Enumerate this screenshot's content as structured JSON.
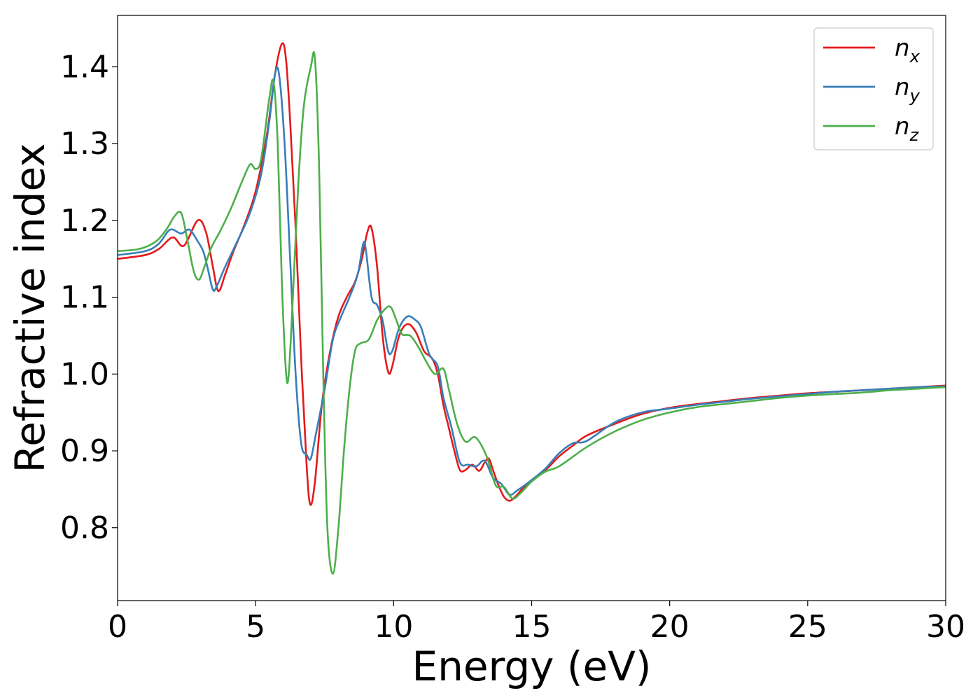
{
  "chart_data": {
    "type": "line",
    "title": "",
    "xlabel": "Energy (eV)",
    "ylabel": "Refractive index",
    "xlim": [
      0,
      30
    ],
    "ylim": [
      0.705,
      1.467
    ],
    "xticks": [
      0,
      5,
      10,
      15,
      20,
      25,
      30
    ],
    "yticks": [
      0.8,
      0.9,
      1.0,
      1.1,
      1.2,
      1.3,
      1.4
    ],
    "ytick_labels": [
      "0.8",
      "0.9",
      "1.0",
      "1.1",
      "1.2",
      "1.3",
      "1.4"
    ],
    "grid": false,
    "legend_position": "top-right",
    "series": [
      {
        "name": "n_x",
        "label_base": "n",
        "label_sub": "x",
        "color": "#e41a1c",
        "x": [
          0,
          1,
          1.5,
          2,
          2.4,
          2.9,
          3.2,
          3.45,
          3.65,
          3.9,
          4.2,
          4.6,
          5.0,
          5.4,
          5.7,
          5.95,
          6.1,
          6.25,
          6.45,
          6.65,
          6.85,
          6.98,
          7.15,
          7.4,
          7.7,
          8.0,
          8.3,
          8.6,
          8.85,
          9.05,
          9.2,
          9.4,
          9.6,
          9.8,
          9.95,
          10.2,
          10.5,
          10.8,
          11.1,
          11.4,
          11.6,
          11.8,
          12.0,
          12.2,
          12.4,
          12.6,
          12.85,
          13.1,
          13.3,
          13.45,
          13.6,
          13.8,
          14.0,
          14.2,
          14.4,
          14.7,
          15.0,
          15.5,
          16,
          16.5,
          17,
          18,
          19,
          20,
          21,
          22,
          23,
          24,
          25,
          26,
          27,
          28,
          29,
          30
        ],
        "y": [
          1.15,
          1.155,
          1.163,
          1.178,
          1.167,
          1.2,
          1.185,
          1.14,
          1.108,
          1.13,
          1.16,
          1.195,
          1.238,
          1.31,
          1.39,
          1.43,
          1.41,
          1.33,
          1.19,
          1.02,
          0.88,
          0.83,
          0.86,
          0.96,
          1.03,
          1.075,
          1.1,
          1.12,
          1.15,
          1.185,
          1.19,
          1.14,
          1.05,
          1.003,
          1.01,
          1.05,
          1.065,
          1.055,
          1.03,
          1.02,
          1.0,
          0.96,
          0.93,
          0.9,
          0.875,
          0.875,
          0.882,
          0.874,
          0.885,
          0.89,
          0.875,
          0.855,
          0.84,
          0.835,
          0.84,
          0.852,
          0.862,
          0.875,
          0.893,
          0.907,
          0.92,
          0.935,
          0.948,
          0.956,
          0.961,
          0.965,
          0.969,
          0.972,
          0.975,
          0.977,
          0.979,
          0.981,
          0.983,
          0.985
        ]
      },
      {
        "name": "n_y",
        "label_base": "n",
        "label_sub": "y",
        "color": "#377eb8",
        "x": [
          0,
          1,
          1.5,
          1.9,
          2.3,
          2.6,
          2.9,
          3.1,
          3.25,
          3.45,
          3.6,
          3.9,
          4.3,
          4.8,
          5.2,
          5.5,
          5.7,
          5.85,
          6.05,
          6.25,
          6.45,
          6.65,
          6.85,
          7.0,
          7.2,
          7.5,
          7.8,
          8.1,
          8.4,
          8.7,
          8.9,
          9.0,
          9.2,
          9.4,
          9.6,
          9.8,
          9.95,
          10.2,
          10.5,
          10.8,
          11.0,
          11.3,
          11.6,
          11.8,
          12.1,
          12.4,
          12.7,
          13.0,
          13.3,
          13.6,
          13.9,
          14.2,
          14.5,
          15.0,
          15.5,
          16,
          16.5,
          17,
          18,
          19,
          20,
          21,
          22,
          23,
          24,
          25,
          26,
          27,
          28,
          29,
          30
        ],
        "y": [
          1.155,
          1.16,
          1.17,
          1.188,
          1.183,
          1.188,
          1.173,
          1.16,
          1.14,
          1.11,
          1.115,
          1.14,
          1.17,
          1.21,
          1.26,
          1.33,
          1.39,
          1.39,
          1.3,
          1.15,
          1.0,
          0.91,
          0.895,
          0.89,
          0.925,
          0.98,
          1.045,
          1.075,
          1.1,
          1.13,
          1.17,
          1.16,
          1.1,
          1.09,
          1.07,
          1.03,
          1.03,
          1.06,
          1.075,
          1.07,
          1.06,
          1.025,
          1.01,
          0.97,
          0.93,
          0.885,
          0.882,
          0.88,
          0.887,
          0.865,
          0.857,
          0.843,
          0.849,
          0.862,
          0.877,
          0.897,
          0.91,
          0.913,
          0.937,
          0.95,
          0.955,
          0.96,
          0.964,
          0.968,
          0.971,
          0.974,
          0.977,
          0.979,
          0.981,
          0.983,
          0.984
        ]
      },
      {
        "name": "n_z",
        "label_base": "n",
        "label_sub": "z",
        "color": "#4daf4a",
        "x": [
          0,
          0.8,
          1.4,
          1.8,
          2.05,
          2.3,
          2.5,
          2.75,
          2.95,
          3.15,
          3.4,
          3.7,
          4.1,
          4.5,
          4.8,
          5.0,
          5.2,
          5.5,
          5.65,
          5.8,
          5.95,
          6.1,
          6.2,
          6.35,
          6.55,
          6.75,
          7.0,
          7.15,
          7.3,
          7.45,
          7.6,
          7.8,
          8.0,
          8.2,
          8.4,
          8.6,
          8.8,
          9.1,
          9.4,
          9.7,
          9.9,
          10.1,
          10.3,
          10.6,
          10.9,
          11.2,
          11.5,
          11.8,
          12.0,
          12.3,
          12.6,
          12.9,
          13.1,
          13.4,
          13.7,
          14.0,
          14.3,
          14.6,
          15.0,
          15.5,
          16,
          17,
          18,
          19,
          20,
          21,
          22,
          23,
          24,
          25,
          26,
          27,
          28,
          29,
          30
        ],
        "y": [
          1.16,
          1.163,
          1.173,
          1.19,
          1.205,
          1.21,
          1.18,
          1.135,
          1.123,
          1.14,
          1.165,
          1.185,
          1.215,
          1.25,
          1.273,
          1.267,
          1.28,
          1.36,
          1.38,
          1.3,
          1.12,
          1.003,
          1.0,
          1.1,
          1.25,
          1.35,
          1.4,
          1.41,
          1.27,
          1.0,
          0.8,
          0.74,
          0.8,
          0.9,
          0.98,
          1.03,
          1.04,
          1.045,
          1.07,
          1.085,
          1.087,
          1.07,
          1.052,
          1.05,
          1.035,
          1.015,
          1.0,
          1.007,
          0.98,
          0.935,
          0.912,
          0.918,
          0.912,
          0.89,
          0.855,
          0.853,
          0.838,
          0.845,
          0.86,
          0.873,
          0.88,
          0.905,
          0.925,
          0.94,
          0.95,
          0.957,
          0.961,
          0.965,
          0.969,
          0.972,
          0.974,
          0.976,
          0.979,
          0.981,
          0.983
        ]
      }
    ]
  }
}
